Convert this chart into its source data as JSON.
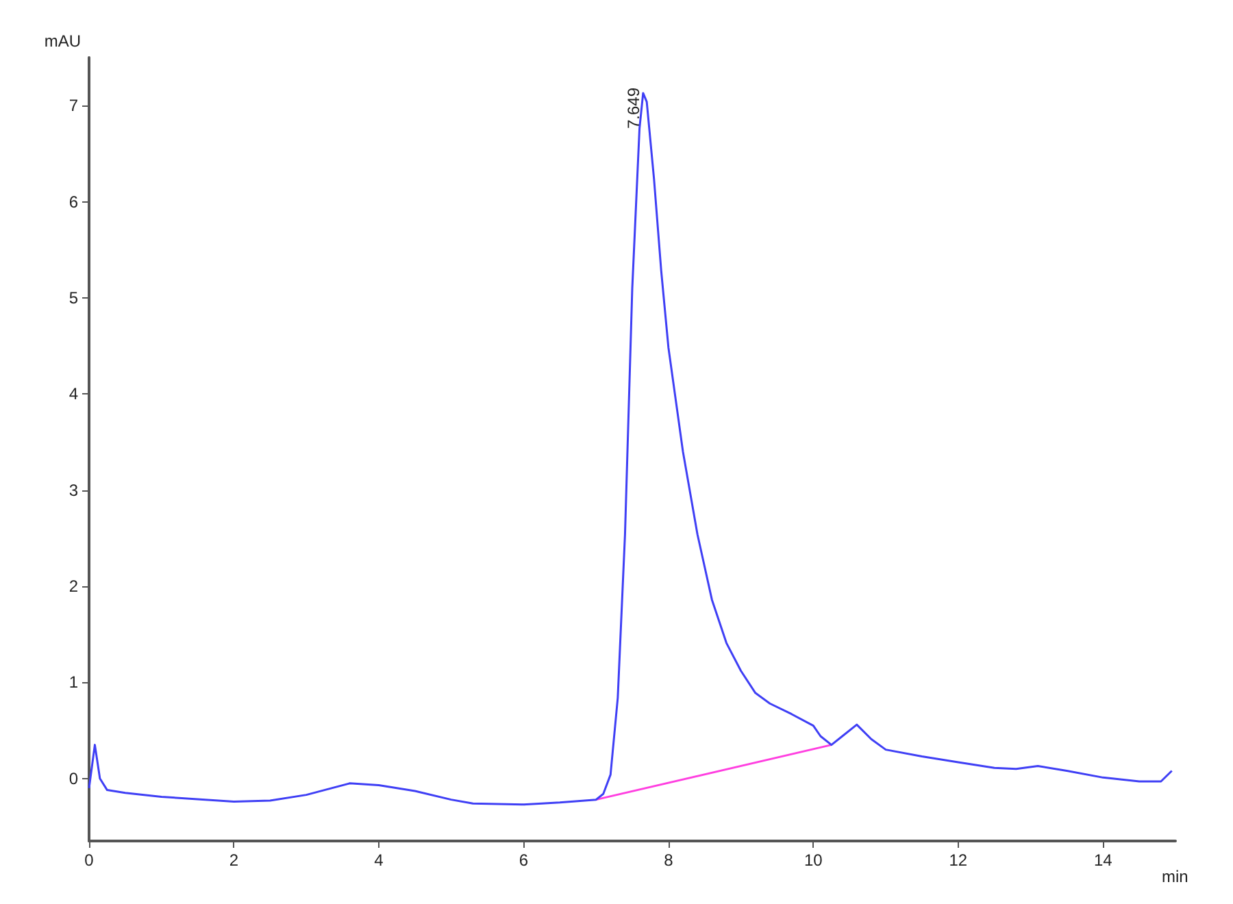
{
  "chart_data": {
    "type": "line",
    "xlabel": "min",
    "ylabel": "mAU",
    "xlim": [
      0,
      15
    ],
    "xticks": [
      0,
      2,
      4,
      6,
      8,
      10,
      12,
      14
    ],
    "ylim": [
      -0.65,
      7.5
    ],
    "yticks": [
      0,
      1,
      2,
      3,
      4,
      5,
      6,
      7
    ],
    "grid": false,
    "marker": "none",
    "line_style": "solid",
    "series": [
      {
        "color": "#3f3ff5",
        "x": [
          0,
          0.08,
          0.15,
          0.25,
          0.5,
          1,
          2,
          2.5,
          3,
          3.6,
          4,
          4.5,
          5,
          5.3,
          6,
          6.5,
          7,
          7.1,
          7.2,
          7.3,
          7.4,
          7.5,
          7.6,
          7.65,
          7.7,
          7.8,
          7.9,
          8,
          8.2,
          8.4,
          8.6,
          8.8,
          9,
          9.2,
          9.4,
          9.7,
          10,
          10.1,
          10.25,
          10.4,
          10.6,
          10.8,
          11,
          11.5,
          12,
          12.5,
          12.8,
          13.1,
          13.5,
          14,
          14.5,
          14.8,
          14.95
        ],
        "values": [
          -0.1,
          0.35,
          0,
          -0.12,
          -0.15,
          -0.19,
          -0.24,
          -0.23,
          -0.17,
          -0.05,
          -0.07,
          -0.13,
          -0.22,
          -0.26,
          -0.27,
          -0.25,
          -0.22,
          -0.16,
          0.04,
          0.84,
          2.54,
          5.1,
          6.76,
          7.13,
          7.04,
          6.24,
          5.28,
          4.48,
          3.4,
          2.54,
          1.86,
          1.41,
          1.12,
          0.89,
          0.78,
          0.67,
          0.55,
          0.44,
          0.35,
          0.44,
          0.56,
          0.41,
          0.3,
          0.23,
          0.17,
          0.11,
          0.1,
          0.13,
          0.08,
          0.01,
          -0.03,
          -0.03,
          0.08
        ]
      },
      {
        "color": "#ff3fe0",
        "x": [
          7.0,
          10.25
        ],
        "values": [
          -0.22,
          0.35
        ]
      }
    ],
    "annotations": [
      {
        "text": "7.649",
        "x": 7.649,
        "y": 7.13
      }
    ]
  }
}
